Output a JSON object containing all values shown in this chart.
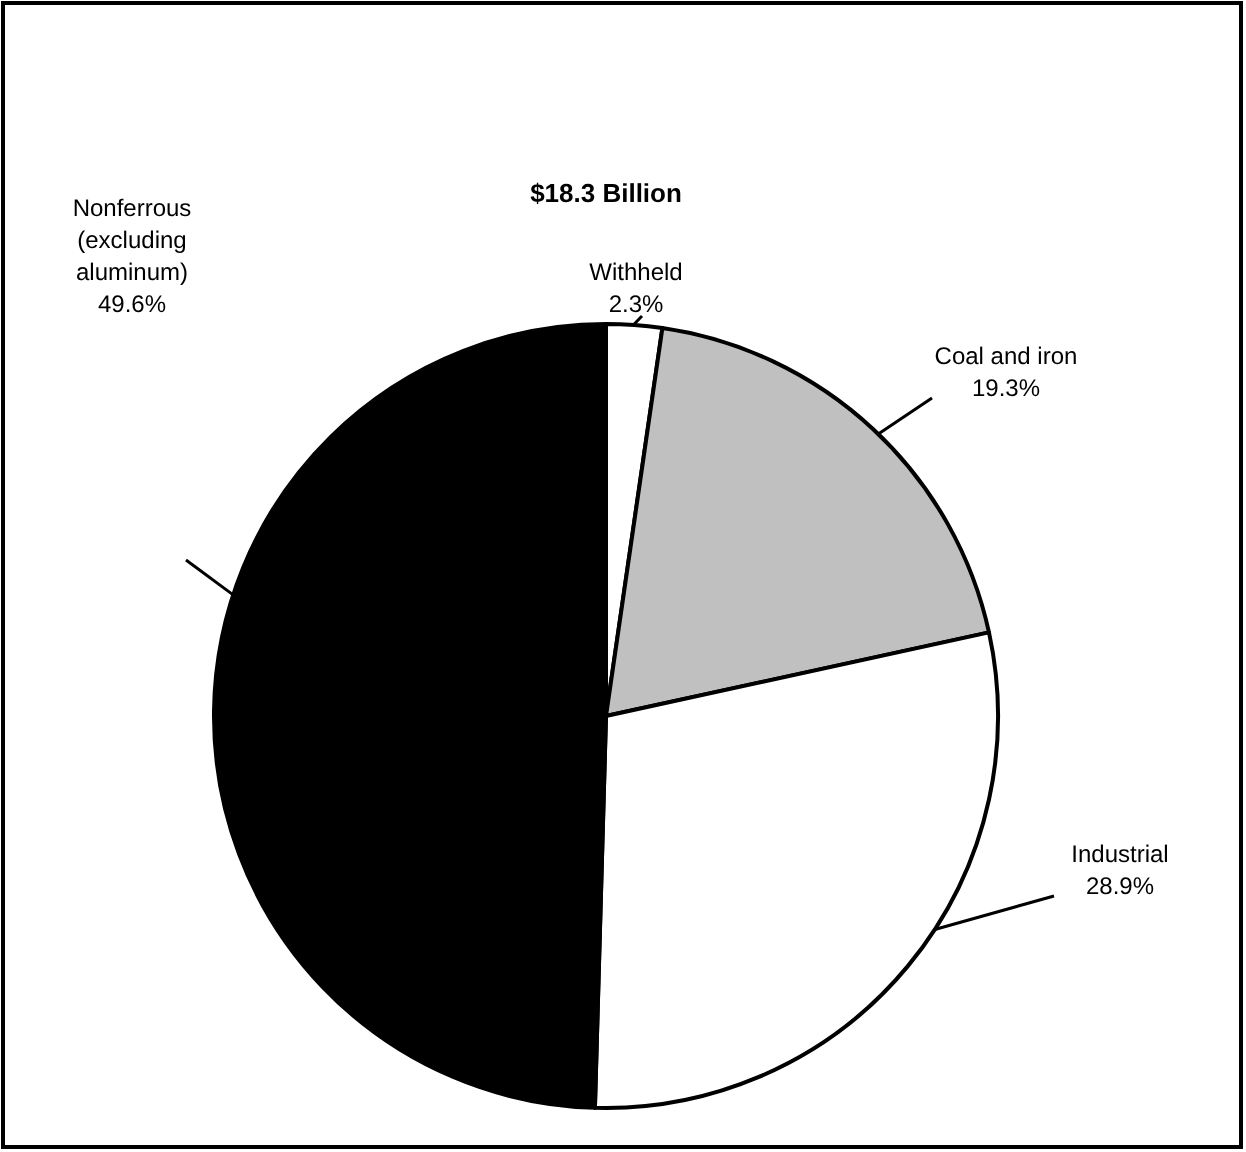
{
  "chart_data": {
    "type": "pie",
    "title": "$18.3 Billion",
    "categories": [
      "Withheld",
      "Coal and iron",
      "Industrial",
      "Nonferrous\n(excluding\naluminum)"
    ],
    "values": [
      2.3,
      19.3,
      28.9,
      49.6
    ],
    "colors": [
      "#ffffff",
      "#c0c0c0",
      "#ffffff",
      "#000000"
    ],
    "value_labels": [
      "2.3%",
      "19.3%",
      "28.9%",
      "49.6%"
    ]
  }
}
